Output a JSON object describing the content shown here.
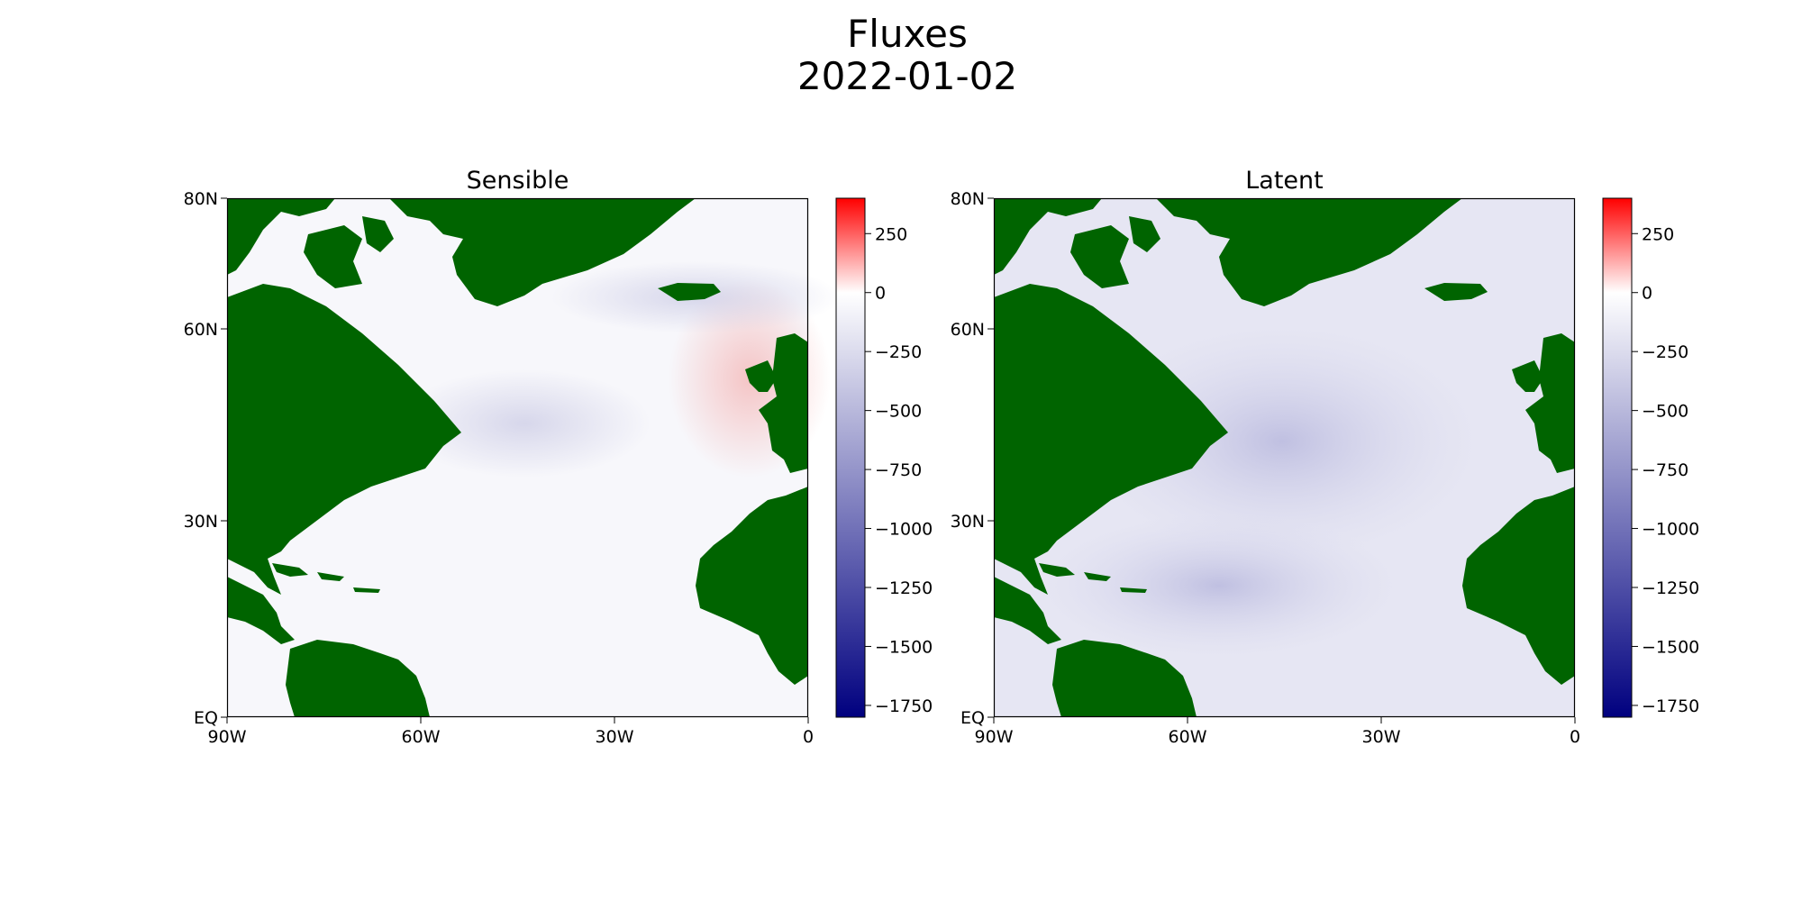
{
  "figure": {
    "title_line1": "Fluxes",
    "title_line2": "2022-01-02"
  },
  "colors": {
    "land": "#006400",
    "cmap": [
      "#00007f",
      "#ffffff",
      "#ff0000"
    ]
  },
  "axes": {
    "x_ticks": [
      "90W",
      "60W",
      "30W",
      "0"
    ],
    "y_ticks": [
      "80N",
      "60N",
      "30N",
      "EQ"
    ]
  },
  "colorbar": {
    "range": [
      -1800,
      400
    ],
    "center": 0,
    "ticks": [
      "250",
      "0",
      "−250",
      "−500",
      "−750",
      "−1000",
      "−1250",
      "−1500",
      "−1750"
    ]
  },
  "panels": [
    {
      "title": "Sensible"
    },
    {
      "title": "Latent"
    }
  ]
}
